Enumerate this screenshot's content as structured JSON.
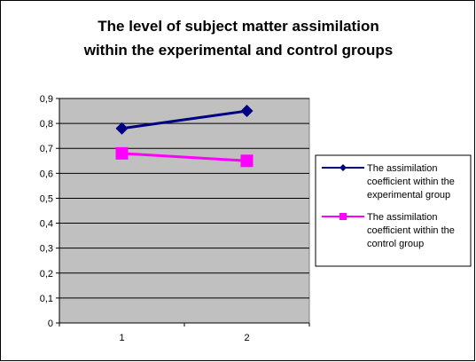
{
  "chart_data": {
    "type": "line",
    "title_lines": [
      "The level of subject matter assimilation",
      "within the experimental and control groups"
    ],
    "categories": [
      "1",
      "2"
    ],
    "series": [
      {
        "name_lines": [
          "The assimilation",
          "coefficient within the",
          "experimental group"
        ],
        "values": [
          0.78,
          0.85
        ],
        "color": "#000080",
        "marker": "diamond"
      },
      {
        "name_lines": [
          "The assimilation",
          "coefficient within the",
          "control group"
        ],
        "values": [
          0.68,
          0.65
        ],
        "color": "#ff00ff",
        "marker": "square"
      }
    ],
    "y_ticks": [
      "0",
      "0,1",
      "0,2",
      "0,3",
      "0,4",
      "0,5",
      "0,6",
      "0,7",
      "0,8",
      "0,9"
    ],
    "ylim": [
      0,
      0.9
    ],
    "grid": true,
    "plot_background": "#c0c0c0",
    "legend_position": "right"
  }
}
